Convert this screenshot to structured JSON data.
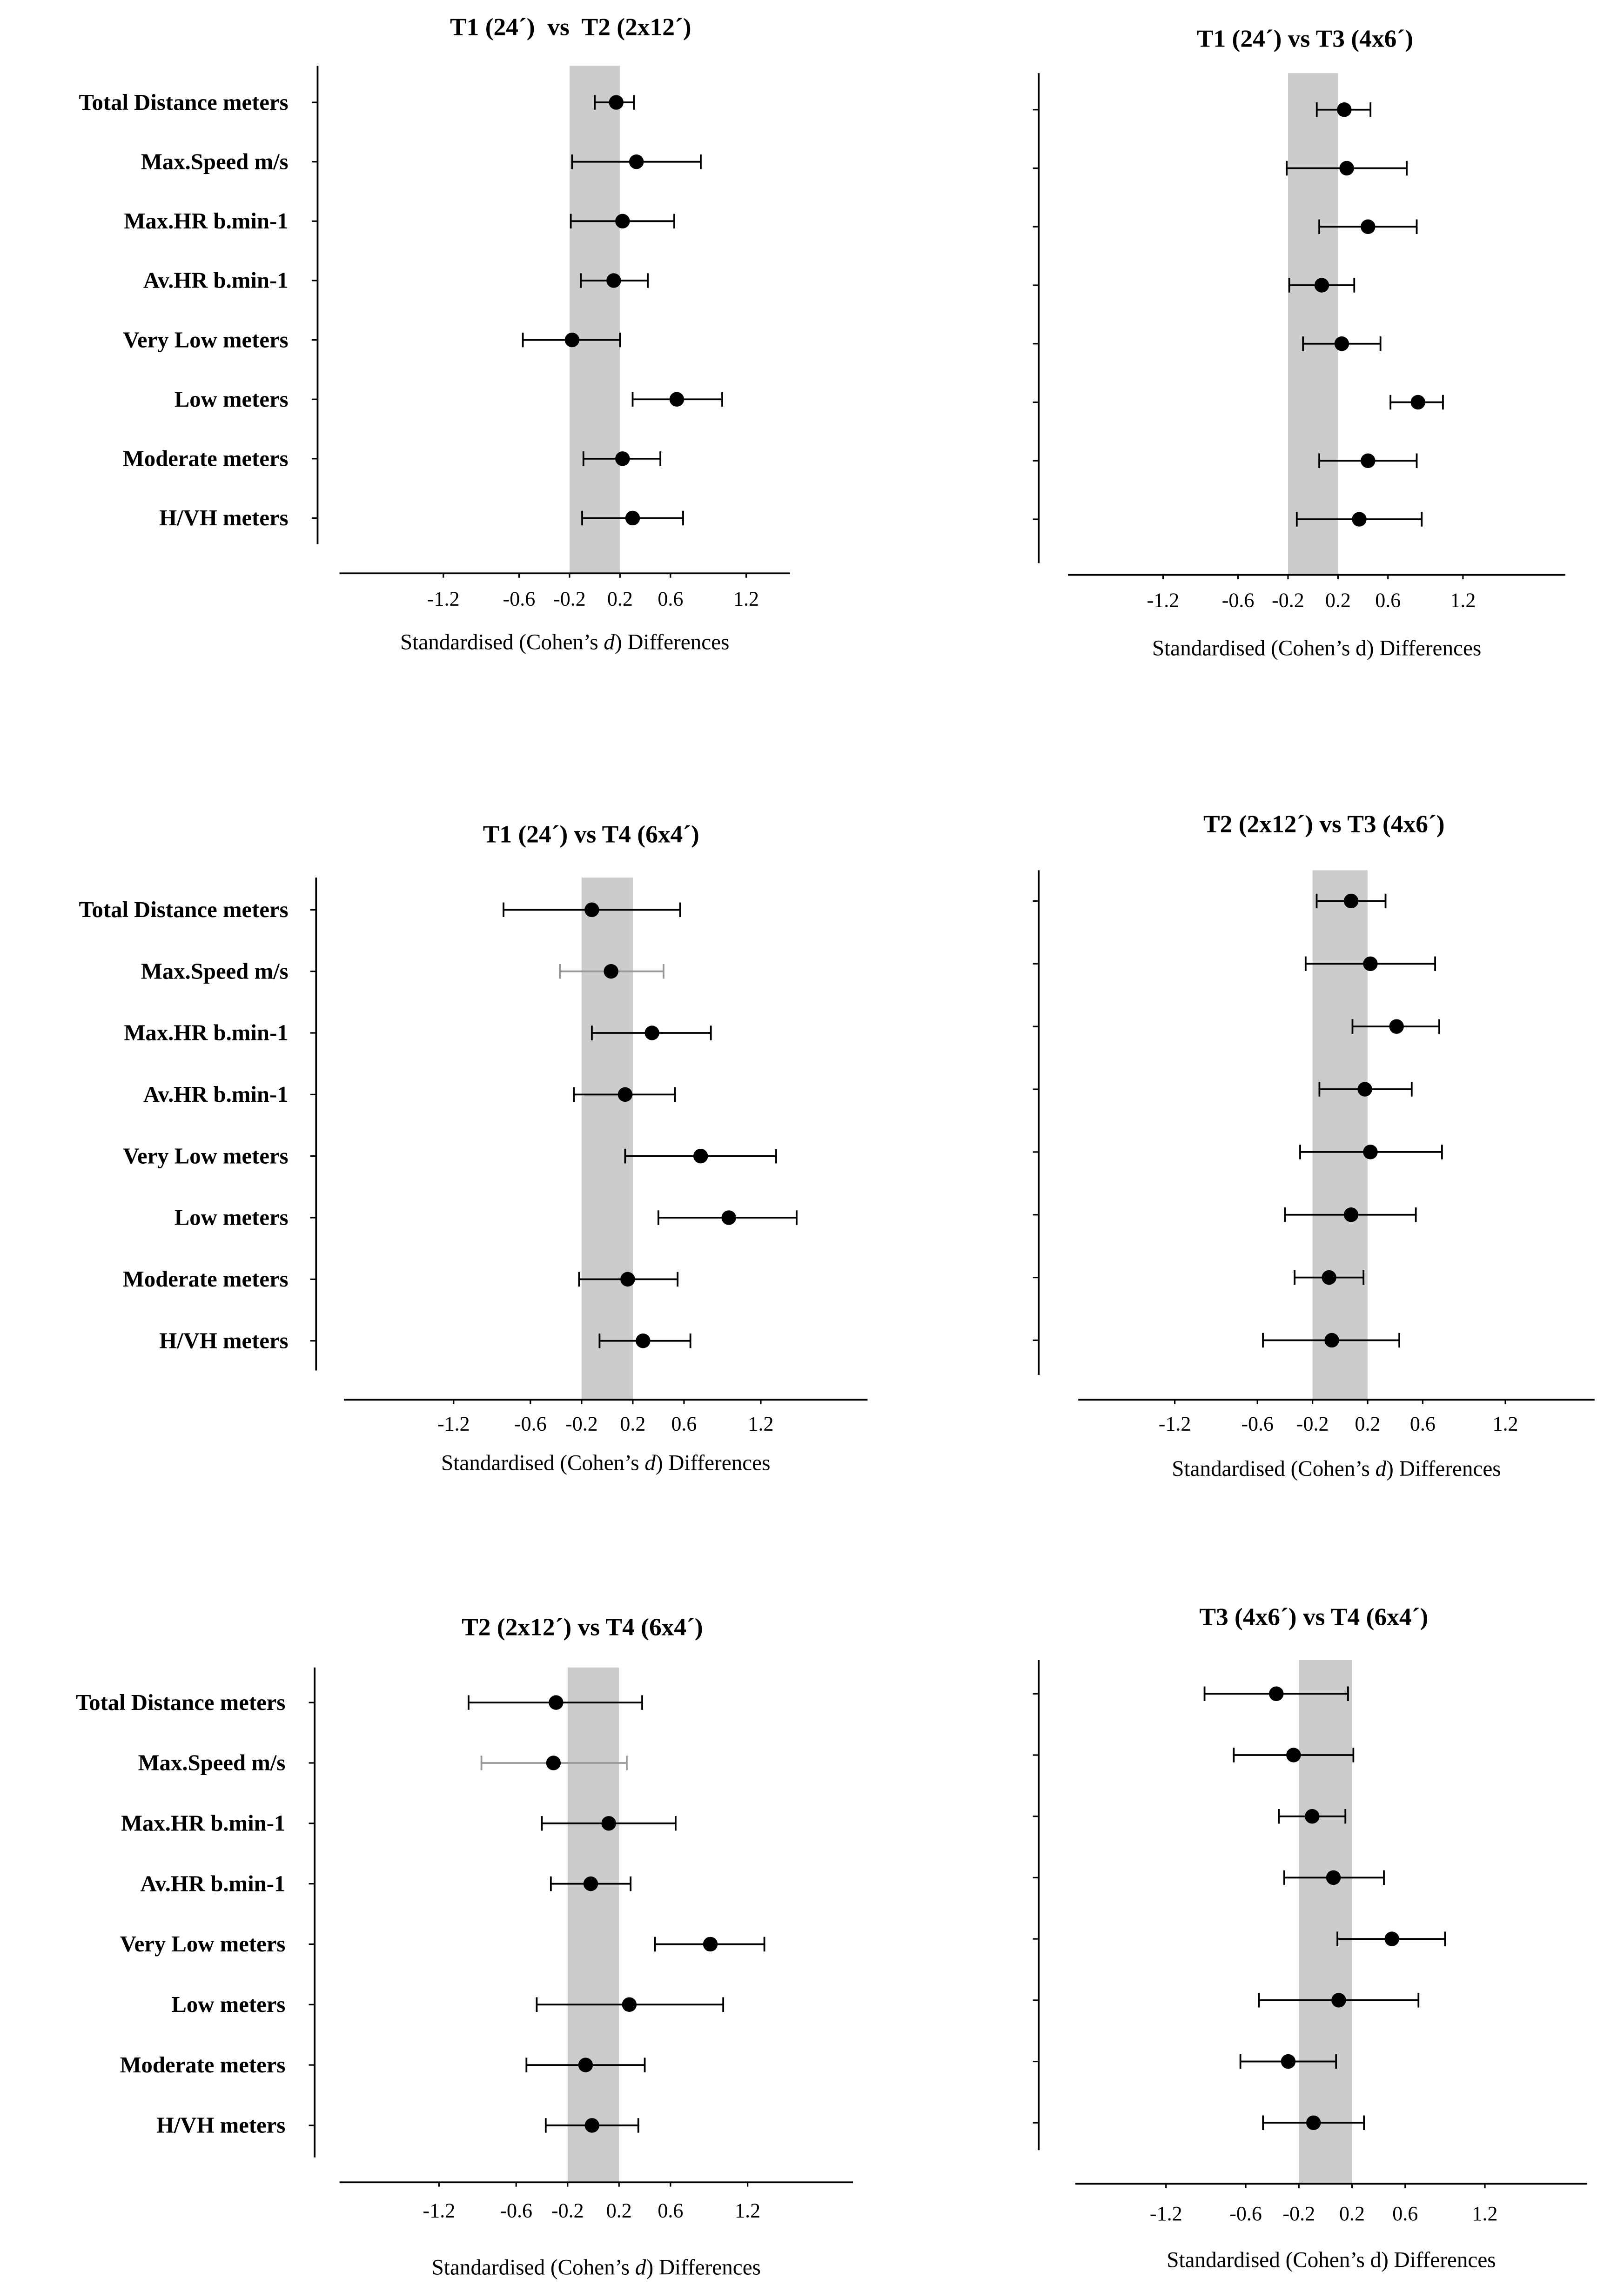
{
  "chart_data": [
    {
      "type": "forest",
      "title": "T1 (24´)  vs  T2 (2x12´)",
      "xlabel": [
        "Standardised (Cohen’s ",
        "d",
        ") Differences"
      ],
      "xlabel_d_italic": true,
      "show_category_labels": true,
      "categories": [
        "Total Distance meters",
        "Max.Speed m/s",
        "Max.HR b.min-1",
        "Av.HR b.min-1",
        "Very Low meters",
        "Low meters",
        "Moderate meters",
        "H/VH meters"
      ],
      "estimate": [
        0.17,
        0.33,
        0.22,
        0.15,
        -0.18,
        0.65,
        0.22,
        0.3
      ],
      "ci_low": [
        0.0,
        -0.18,
        -0.19,
        -0.11,
        -0.57,
        0.3,
        -0.09,
        -0.1
      ],
      "ci_high": [
        0.31,
        0.84,
        0.63,
        0.42,
        0.2,
        1.01,
        0.52,
        0.7
      ],
      "light_ci": []
    },
    {
      "type": "forest",
      "title": "T1 (24´) vs T3 (4x6´)",
      "xlabel": [
        "Standardised (Cohen’s ",
        "d",
        ") Differences"
      ],
      "xlabel_d_italic": false,
      "show_category_labels": false,
      "categories": [
        "Total Distance meters",
        "Max.Speed m/s",
        "Max.HR b.min-1",
        "Av.HR b.min-1",
        "Very Low meters",
        "Low meters",
        "Moderate meters",
        "H/VH meters"
      ],
      "estimate": [
        0.25,
        0.27,
        0.44,
        0.07,
        0.23,
        0.84,
        0.44,
        0.37
      ],
      "ci_low": [
        0.03,
        -0.21,
        0.05,
        -0.19,
        -0.08,
        0.62,
        0.05,
        -0.13
      ],
      "ci_high": [
        0.46,
        0.75,
        0.83,
        0.33,
        0.54,
        1.04,
        0.83,
        0.87
      ],
      "light_ci": []
    },
    {
      "type": "forest",
      "title": "T1 (24´) vs T4 (6x4´)",
      "xlabel": [
        "Standardised (Cohen’s ",
        "d",
        ") Differences"
      ],
      "xlabel_d_italic": true,
      "show_category_labels": true,
      "categories": [
        "Total Distance meters",
        "Max.Speed m/s",
        "Max.HR b.min-1",
        "Av.HR b.min-1",
        "Very Low meters",
        "Low meters",
        "Moderate meters",
        "H/VH meters"
      ],
      "estimate": [
        -0.12,
        0.03,
        0.35,
        0.14,
        0.73,
        0.95,
        0.16,
        0.28
      ],
      "ci_low": [
        -0.81,
        -0.37,
        -0.12,
        -0.26,
        0.14,
        0.4,
        -0.22,
        -0.06
      ],
      "ci_high": [
        0.57,
        0.44,
        0.81,
        0.53,
        1.32,
        1.48,
        0.55,
        0.65
      ],
      "light_ci": [
        1
      ]
    },
    {
      "type": "forest",
      "title": "T2 (2x12´) vs T3 (4x6´)",
      "xlabel": [
        "Standardised (Cohen’s ",
        "d",
        ") Differences"
      ],
      "xlabel_d_italic": true,
      "show_category_labels": false,
      "categories": [
        "Total Distance meters",
        "Max.Speed m/s",
        "Max.HR b.min-1",
        "Av.HR b.min-1",
        "Very Low meters",
        "Low meters",
        "Moderate meters",
        "H/VH meters"
      ],
      "estimate": [
        0.08,
        0.22,
        0.41,
        0.18,
        0.22,
        0.08,
        -0.08,
        -0.06
      ],
      "ci_low": [
        -0.17,
        -0.25,
        0.09,
        -0.15,
        -0.29,
        -0.4,
        -0.33,
        -0.56
      ],
      "ci_high": [
        0.33,
        0.69,
        0.72,
        0.52,
        0.74,
        0.55,
        0.17,
        0.43
      ],
      "light_ci": []
    },
    {
      "type": "forest",
      "title": "T2 (2x12´) vs T4 (6x4´)",
      "xlabel": [
        "Standardised (Cohen’s ",
        "d",
        ") Differences"
      ],
      "xlabel_d_italic": true,
      "show_category_labels": true,
      "categories": [
        "Total Distance meters",
        "Max.Speed m/s",
        "Max.HR b.min-1",
        "Av.HR b.min-1",
        "Very Low meters",
        "Low meters",
        "Moderate meters",
        "H/VH meters"
      ],
      "estimate": [
        -0.29,
        -0.31,
        0.12,
        -0.02,
        0.91,
        0.28,
        -0.06,
        -0.01
      ],
      "ci_low": [
        -0.97,
        -0.87,
        -0.4,
        -0.33,
        0.48,
        -0.44,
        -0.52,
        -0.37
      ],
      "ci_high": [
        0.38,
        0.26,
        0.64,
        0.29,
        1.33,
        1.01,
        0.4,
        0.35
      ],
      "light_ci": [
        1
      ]
    },
    {
      "type": "forest",
      "title": "T3 (4x6´) vs T4 (6x4´)",
      "xlabel": [
        "Standardised (Cohen’s ",
        "d",
        ") Differences"
      ],
      "xlabel_d_italic": false,
      "show_category_labels": false,
      "categories": [
        "Total Distance meters",
        "Max.Speed m/s",
        "Max.HR b.min-1",
        "Av.HR b.min-1",
        "Very Low meters",
        "Low meters",
        "Moderate meters",
        "H/VH meters"
      ],
      "estimate": [
        -0.37,
        -0.24,
        -0.1,
        0.06,
        0.5,
        0.1,
        -0.28,
        -0.09
      ],
      "ci_low": [
        -0.91,
        -0.69,
        -0.35,
        -0.31,
        0.09,
        -0.5,
        -0.64,
        -0.47
      ],
      "ci_high": [
        0.17,
        0.21,
        0.15,
        0.44,
        0.9,
        0.7,
        0.08,
        0.29
      ],
      "light_ci": []
    }
  ],
  "axis": {
    "ticks": [
      -1.2,
      -0.6,
      -0.2,
      0.2,
      0.6,
      1.2
    ],
    "tick_labels": [
      "-1.2",
      "-0.6",
      "-0.2",
      "0.2",
      "0.6",
      "1.2"
    ],
    "trivial_band": [
      -0.2,
      0.2
    ],
    "grid": false
  },
  "colors": {
    "band": "#cccccc",
    "point": "#000000",
    "ci": "#000000",
    "ci_light": "#999999"
  }
}
